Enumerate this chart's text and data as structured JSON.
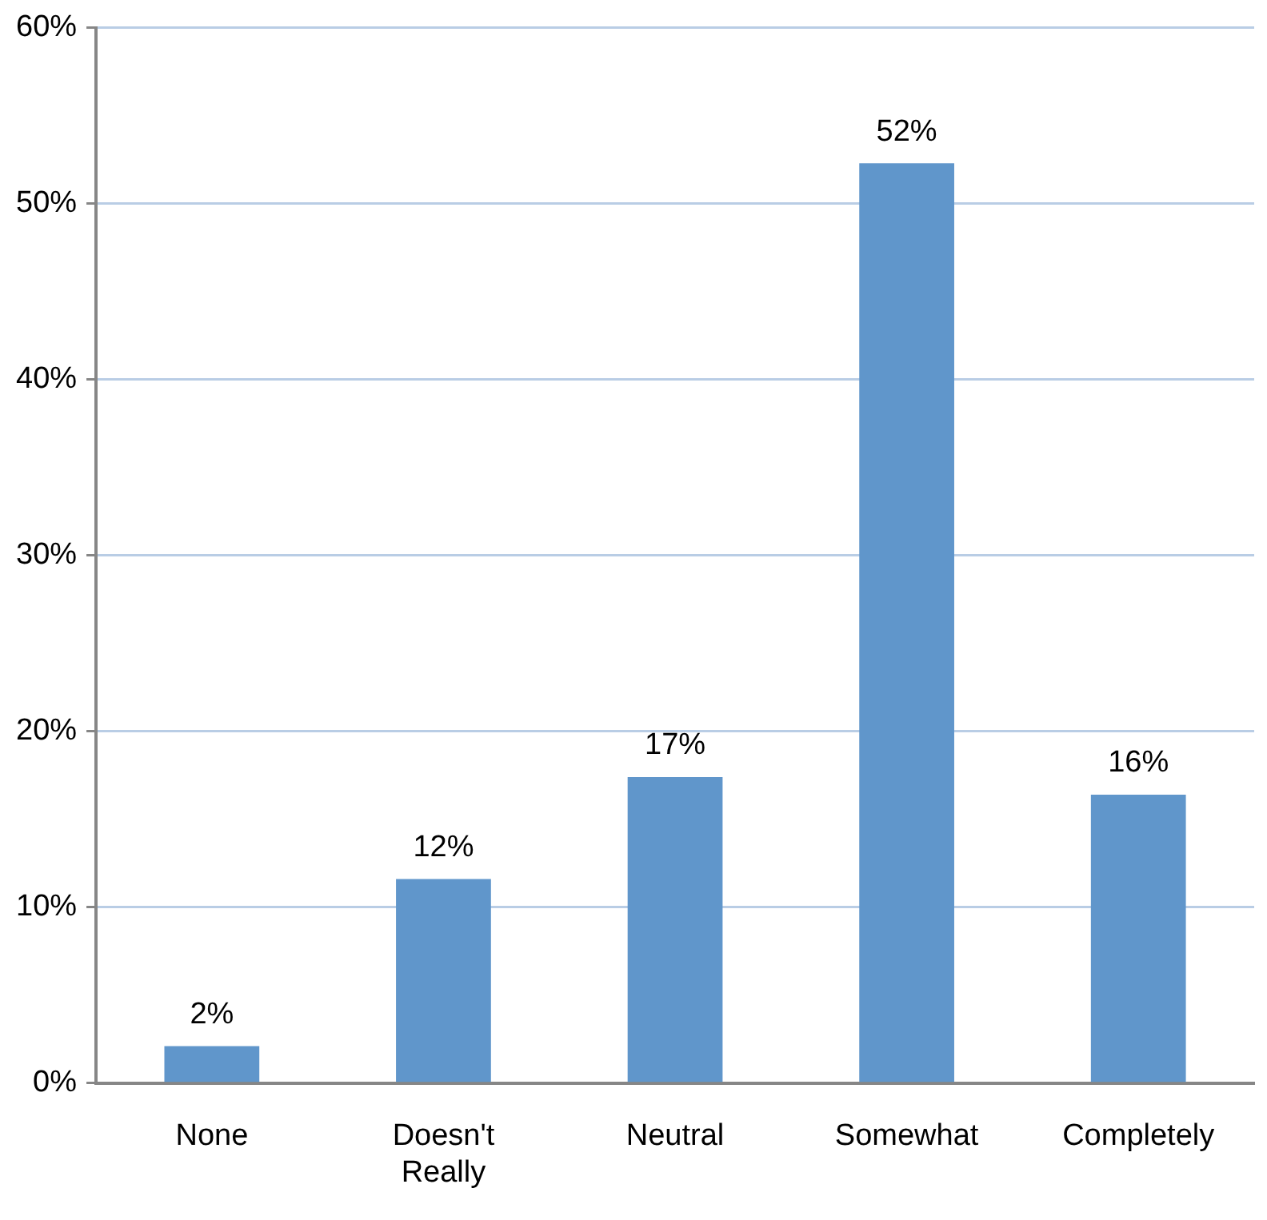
{
  "chart_data": {
    "type": "bar",
    "categories": [
      "None",
      "Doesn't Really",
      "Neutral",
      "Somewhat",
      "Completely"
    ],
    "values": [
      2.1,
      11.6,
      17.4,
      52.3,
      16.4
    ],
    "value_labels": [
      "2%",
      "12%",
      "17%",
      "52%",
      "16%"
    ],
    "color": "#6096cb",
    "ylim": [
      0,
      60
    ],
    "yticks": [
      {
        "value": 0,
        "label": "0%"
      },
      {
        "value": 10,
        "label": "10%"
      },
      {
        "value": 20,
        "label": "20%"
      },
      {
        "value": 30,
        "label": "30%"
      },
      {
        "value": 40,
        "label": "40%"
      },
      {
        "value": 50,
        "label": "50%"
      },
      {
        "value": 60,
        "label": "60%"
      }
    ],
    "grid": "y",
    "legend": false
  }
}
